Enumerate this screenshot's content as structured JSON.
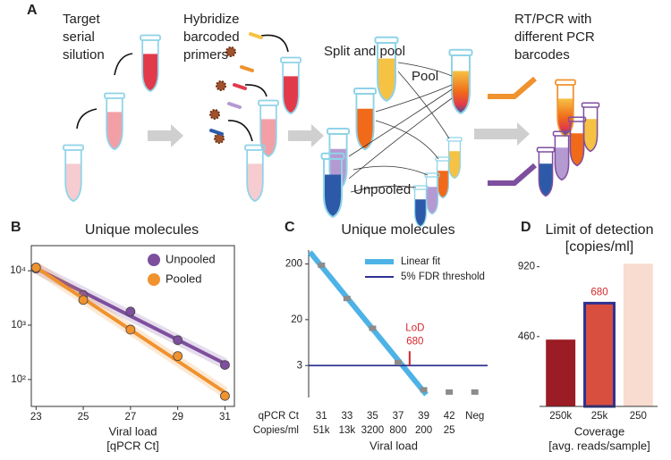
{
  "diagram": {
    "label": "A",
    "steps": [
      {
        "lines": [
          "Target",
          "serial",
          "silution"
        ]
      },
      {
        "lines": [
          "Hybridize",
          "barcoded",
          "primers"
        ]
      },
      {
        "lines": [
          "Split and pool"
        ]
      },
      {
        "lines": [
          "RT/PCR with",
          "different PCR",
          "barcodes"
        ]
      }
    ],
    "pool_label": "Pool",
    "unpooled_label": "Unpooled"
  },
  "chart_data": [
    {
      "type": "line",
      "panel": "B",
      "title": "Unique molecules",
      "xlabel": [
        "Viral load",
        "[qPCR Ct]"
      ],
      "x": [
        23,
        25,
        27,
        29,
        31
      ],
      "series": [
        {
          "name": "Unpooled",
          "color": "#7d4f9e",
          "values": [
            11000,
            3600,
            1780,
            530,
            185
          ]
        },
        {
          "name": "Pooled",
          "color": "#f0922e",
          "values": [
            11500,
            2900,
            830,
            270,
            50
          ]
        }
      ],
      "xlim": [
        22.8,
        31.4
      ],
      "xticks": [
        23,
        25,
        27,
        29,
        31
      ],
      "ylim": [
        32,
        29000
      ],
      "log_y": true,
      "yticks": [
        {
          "value": 100,
          "label": "10²"
        },
        {
          "value": 1000,
          "label": "10³"
        },
        {
          "value": 10000,
          "label": "10⁴"
        }
      ],
      "fit": "log-linear",
      "legend": "upper right"
    },
    {
      "type": "dot",
      "panel": "C",
      "title": "Unique molecules",
      "xlabel": "Viral load",
      "row_labels": [
        "qPCR Ct",
        "Copies/ml"
      ],
      "categories": [
        "31",
        "33",
        "35",
        "37",
        "39",
        "42",
        "Neg"
      ],
      "categories2": [
        "51k",
        "13k",
        "3200",
        "800",
        "200",
        "25",
        null
      ],
      "values": [
        190,
        48,
        14,
        3.4,
        1.1,
        1,
        1
      ],
      "color": "#8c8c8c",
      "ylim": [
        0.8,
        355
      ],
      "log_y": true,
      "yticks": [
        3,
        20,
        200
      ],
      "fit_name": "Linear fit",
      "fit_color": "#4db3e6",
      "threshold": 3,
      "threshold_name": "5% FDR threshold",
      "threshold_color": "#2e3192",
      "lod_label": "LoD",
      "lod_value_label": "680",
      "lod_color": "#d7262b"
    },
    {
      "type": "bar",
      "panel": "D",
      "title": [
        "Limit of detection",
        "[copies/ml]"
      ],
      "xlabel": [
        "Coverage",
        "[avg. reads/sample]"
      ],
      "categories": [
        "250k",
        "25k",
        "250"
      ],
      "values": [
        440,
        680,
        940
      ],
      "value_labels": [
        null,
        "680",
        null
      ],
      "colors": [
        "#9b1c24",
        "#d94f3f",
        "#f8dccf"
      ],
      "edgecolors": [
        null,
        "#2e3192",
        null
      ],
      "value_label_color": "#d7262b",
      "ylim": [
        0,
        1000
      ],
      "yticks": [
        460,
        920
      ]
    }
  ]
}
